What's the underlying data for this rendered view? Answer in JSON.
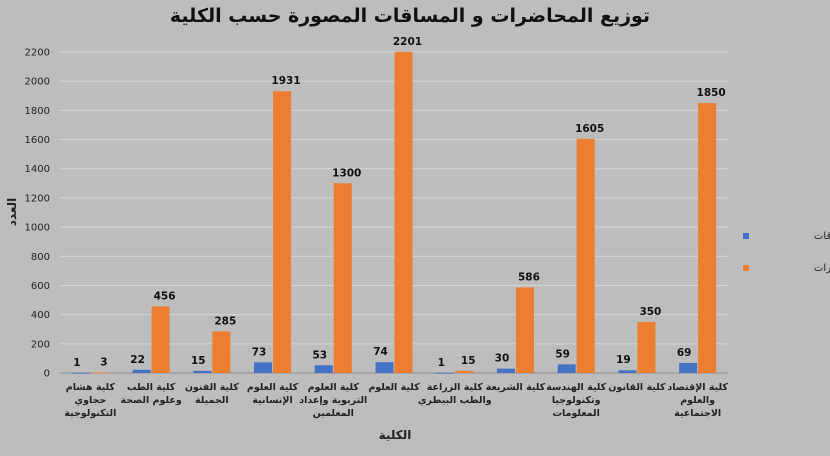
{
  "chart_data": {
    "type": "bar",
    "title": "توزيع المحاضرات و المساقات المصورة حسب الكلية",
    "xlabel": "الكلية",
    "ylabel": "العدد",
    "ylim": [
      0,
      2200
    ],
    "yticks": [
      "0",
      "200",
      "400",
      "600",
      "800",
      "1000",
      "1200",
      "1400",
      "1600",
      "1800",
      "2000",
      "2200"
    ],
    "grid": true,
    "legend_position": "right",
    "categories": [
      [
        "كلية هشام",
        "حجاوي",
        "التكنولوجية"
      ],
      [
        "كلية الطب",
        "وعلوم الصحة"
      ],
      [
        "كلية الفنون",
        "الجميلة"
      ],
      [
        "كلية العلوم",
        "الإنسانية"
      ],
      [
        "كلية العلوم",
        "التربوية وإعداد",
        "المعلمين"
      ],
      [
        "كلية العلوم"
      ],
      [
        "كلية الزراعة",
        "والطب البيطري"
      ],
      [
        "كلية الشريعة"
      ],
      [
        "كلية الهندسة",
        "وتكنولوجيا",
        "المعلومات"
      ],
      [
        "كلية القانون"
      ],
      [
        "كلية الإقتصاد",
        "والعلوم",
        "الاجتماعية"
      ]
    ],
    "series": [
      {
        "name": "عدد المساقات",
        "color": "#4472c4",
        "values": [
          1,
          22,
          15,
          73,
          53,
          74,
          1,
          30,
          59,
          19,
          69
        ]
      },
      {
        "name": "عدد المحاضرات",
        "color": "#ed7d31",
        "values": [
          3,
          456,
          285,
          1931,
          1300,
          2201,
          15,
          586,
          1605,
          350,
          1850
        ]
      }
    ]
  }
}
